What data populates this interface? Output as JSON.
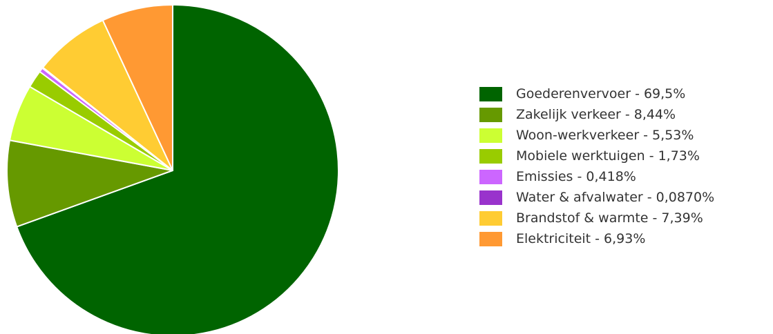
{
  "chart_data": {
    "type": "pie",
    "slices": [
      {
        "label": "Goederenvervoer - 69,5%",
        "value": 69.5,
        "color": "#006400"
      },
      {
        "label": "Zakelijk verkeer - 8,44%",
        "value": 8.44,
        "color": "#669900"
      },
      {
        "label": "Woon-werkverkeer - 5,53%",
        "value": 5.53,
        "color": "#ccff33"
      },
      {
        "label": "Mobiele werktuigen - 1,73%",
        "value": 1.73,
        "color": "#99cc00"
      },
      {
        "label": "Emissies - 0,418%",
        "value": 0.418,
        "color": "#cc66ff"
      },
      {
        "label": "Water & afvalwater - 0,0870%",
        "value": 0.087,
        "color": "#9933cc"
      },
      {
        "label": "Brandstof & warmte - 7,39%",
        "value": 7.39,
        "color": "#ffcc33"
      },
      {
        "label": "Elektriciteit - 6,93%",
        "value": 6.93,
        "color": "#ff9933"
      }
    ],
    "legend_position": "right",
    "start_angle": "top",
    "direction": "clockwise"
  }
}
